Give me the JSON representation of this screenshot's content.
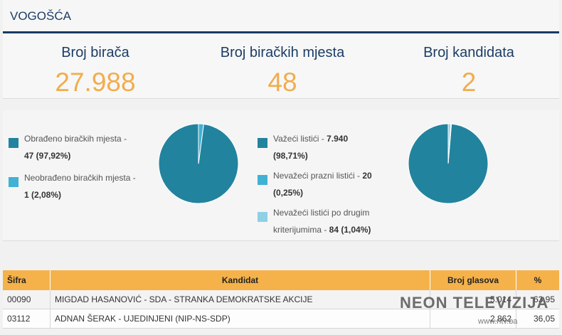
{
  "header": {
    "title": "VOGOŠĆA"
  },
  "stats": [
    {
      "label": "Broj birača",
      "value": "27.988"
    },
    {
      "label": "Broj biračkih mjesta",
      "value": "48"
    },
    {
      "label": "Broj kandidata",
      "value": "2"
    }
  ],
  "chart_data": [
    {
      "type": "pie",
      "categories": [
        "Obrađeno biračkih mjesta",
        "Neobrađeno biračkih mjesta"
      ],
      "values": [
        47,
        1
      ],
      "percent": [
        97.92,
        2.08
      ],
      "colors": [
        "#22839e",
        "#41b1d4"
      ]
    },
    {
      "type": "pie",
      "categories": [
        "Važeći listići",
        "Nevažeći prazni listići",
        "Nevažeći listići po drugim kriterijumima"
      ],
      "values": [
        7940,
        20,
        84
      ],
      "percent": [
        98.71,
        0.25,
        1.04
      ],
      "colors": [
        "#22839e",
        "#41b1d4",
        "#8fd0e6"
      ]
    }
  ],
  "legend1": [
    {
      "line1": "Obrađeno biračkih mjesta -",
      "value": "47 (97,92%)",
      "color": "#22839e"
    },
    {
      "line1": "Neobrađeno biračkih mjesta -",
      "value": "1 (2,08%)",
      "color": "#41b1d4"
    }
  ],
  "legend2": [
    {
      "line1a": "Važeći listići - ",
      "line1b": "7.940",
      "value": "(98,71%)",
      "color": "#22839e"
    },
    {
      "line1a": "Nevažeći prazni listići - ",
      "line1b": "20",
      "value": "(0,25%)",
      "color": "#41b1d4"
    },
    {
      "line1a": "Nevažeći listići po drugim",
      "line2a": "kriterijumima - ",
      "value": "84 (1,04%)",
      "color": "#8fd0e6"
    }
  ],
  "table": {
    "headers": [
      "Šifra",
      "Kandidat",
      "Broj glasova",
      "%"
    ],
    "rows": [
      {
        "code": "00090",
        "name": "MIGDAD HASANOVIĆ - SDA - STRANKA DEMOKRATSKE AKCIJE",
        "votes": "5.014",
        "pct": "63,95"
      },
      {
        "code": "03112",
        "name": "ADNAN ŠERAK - UJEDINJENI (NIP-NS-SDP)",
        "votes": "2.862",
        "pct": "36,05"
      }
    ]
  },
  "watermark": {
    "brand": "NEON TELEVIZIJA",
    "url": "www.ntv.ba"
  }
}
